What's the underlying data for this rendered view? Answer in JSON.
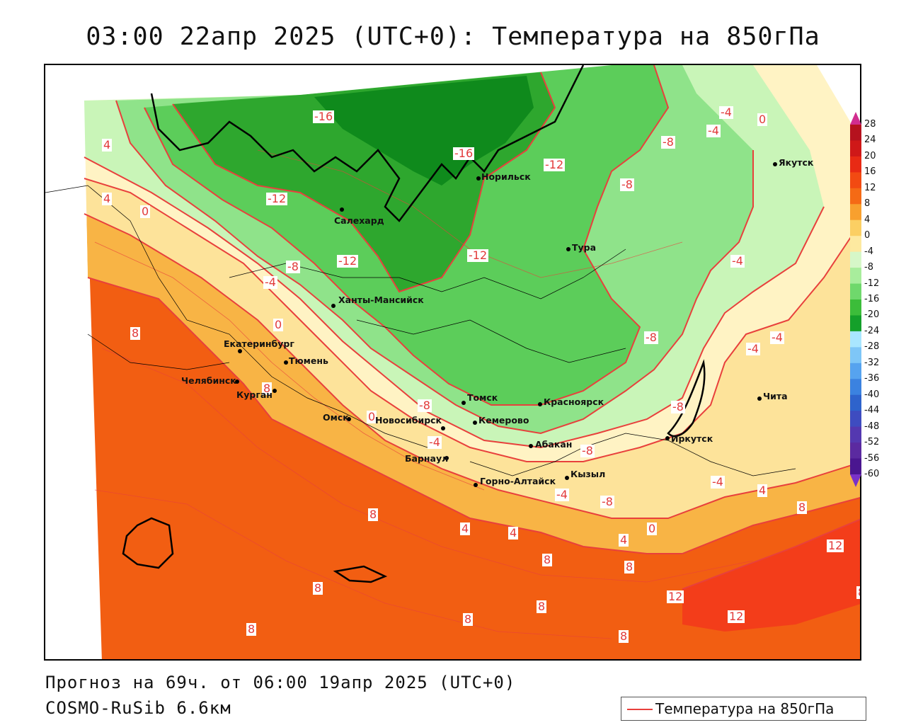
{
  "title": "03:00 22апр 2025 (UTC+0): Температура на 850гПа",
  "forecast_line": "Прогноз на 69ч. от 06:00 19апр 2025 (UTC+0)",
  "model_line": "COSMO-RuSib 6.6км",
  "legend_label": "Температура на 850гПа",
  "colors": {
    "contour": "#e8403c",
    "orange": "#f25e12",
    "lightorange": "#f8b445",
    "yellow": "#fde39a",
    "paleyellow": "#fff3c4",
    "palegreen": "#c9f5b8",
    "lightgreen": "#8fe38a",
    "green": "#5ccd5a",
    "darkgreen": "#2ea72e",
    "deepgreen": "#0f8a1c"
  },
  "colorbar": {
    "labels": [
      "28",
      "24",
      "20",
      "16",
      "12",
      "8",
      "4",
      "0",
      "-4",
      "-8",
      "-12",
      "-16",
      "-20",
      "-24",
      "-28",
      "-32",
      "-36",
      "-40",
      "-44",
      "-48",
      "-52",
      "-56",
      "-60"
    ],
    "colors": [
      "#b5121e",
      "#cf1818",
      "#e82a14",
      "#f24a12",
      "#f56a15",
      "#f8a02e",
      "#fbcf63",
      "#fde9a0",
      "#d6f7c8",
      "#a8ed9c",
      "#6fd86c",
      "#3cbd3a",
      "#14a02a",
      "#a9e6ff",
      "#7ec6f7",
      "#56a3ef",
      "#3b82e0",
      "#2e63cc",
      "#3e4cc0",
      "#5438b0",
      "#5b2aa0",
      "#4a1690"
    ]
  },
  "cities": [
    {
      "name": "Норильск"
    },
    {
      "name": "Салехард"
    },
    {
      "name": "Тура"
    },
    {
      "name": "Якутск"
    },
    {
      "name": "Ханты-Мансийск"
    },
    {
      "name": "Екатеринбург"
    },
    {
      "name": "Тюмень"
    },
    {
      "name": "Челябинск"
    },
    {
      "name": "Курган"
    },
    {
      "name": "Омск"
    },
    {
      "name": "Новосибирск"
    },
    {
      "name": "Томск"
    },
    {
      "name": "Кемерово"
    },
    {
      "name": "Красноярск"
    },
    {
      "name": "Абакан"
    },
    {
      "name": "Барнаул"
    },
    {
      "name": "Горно-Алтайск"
    },
    {
      "name": "Кызыл"
    },
    {
      "name": "Иркутск"
    },
    {
      "name": "Чита"
    }
  ],
  "contour_labels": [
    "-16",
    "-16",
    "-12",
    "-12",
    "-12",
    "-12",
    "-8",
    "-8",
    "-8",
    "-8",
    "-8",
    "-8",
    "-8",
    "-8",
    "-4",
    "-4",
    "-4",
    "-4",
    "-4",
    "-4",
    "-4",
    "-4",
    "-4",
    "0",
    "0",
    "0",
    "0",
    "0",
    "4",
    "4",
    "4",
    "4",
    "4",
    "4",
    "8",
    "8",
    "8",
    "8",
    "8",
    "8",
    "8",
    "8",
    "8",
    "8",
    "8",
    "8",
    "12",
    "12",
    "12"
  ]
}
